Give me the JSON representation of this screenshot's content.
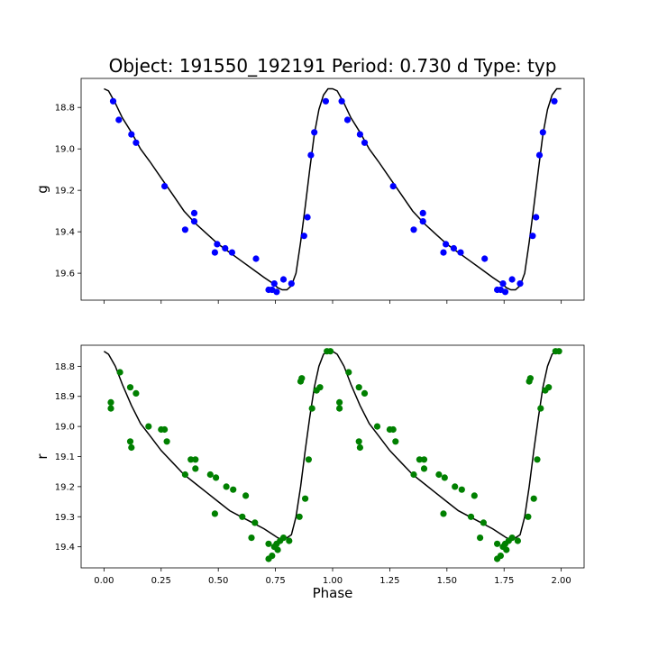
{
  "chart_data": {
    "type": "scatter",
    "title": "Object: 191550_192191    Period: 0.730 d    Type: typ",
    "xlabel": "Phase",
    "x_ticks": [
      0.0,
      0.25,
      0.5,
      0.75,
      1.0,
      1.25,
      1.5,
      1.75,
      2.0
    ],
    "x_tick_labels": [
      "0.00",
      "0.25",
      "0.50",
      "0.75",
      "1.00",
      "1.25",
      "1.50",
      "1.75",
      "2.00"
    ],
    "xlim": [
      -0.1,
      2.1
    ],
    "grid": false,
    "panels": [
      {
        "ylabel": "g",
        "ylim": [
          19.73,
          18.66
        ],
        "y_inverted": true,
        "y_ticks": [
          18.8,
          19.0,
          19.2,
          19.4,
          19.6
        ],
        "y_tick_labels": [
          "18.8",
          "19.0",
          "19.2",
          "19.4",
          "19.6"
        ],
        "point_color": "#0000ff",
        "line_color": "#000000",
        "points": [
          [
            0.04,
            18.77
          ],
          [
            0.065,
            18.86
          ],
          [
            0.12,
            18.93
          ],
          [
            0.14,
            18.97
          ],
          [
            0.265,
            19.18
          ],
          [
            0.355,
            19.39
          ],
          [
            0.395,
            19.31
          ],
          [
            0.395,
            19.35
          ],
          [
            0.485,
            19.5
          ],
          [
            0.495,
            19.46
          ],
          [
            0.53,
            19.48
          ],
          [
            0.56,
            19.5
          ],
          [
            0.665,
            19.53
          ],
          [
            0.72,
            19.68
          ],
          [
            0.735,
            19.68
          ],
          [
            0.745,
            19.65
          ],
          [
            0.755,
            19.69
          ],
          [
            0.785,
            19.63
          ],
          [
            0.82,
            19.65
          ],
          [
            0.875,
            19.42
          ],
          [
            0.89,
            19.33
          ],
          [
            0.905,
            19.03
          ],
          [
            0.92,
            18.92
          ],
          [
            0.97,
            18.77
          ],
          [
            1.04,
            18.77
          ],
          [
            1.065,
            18.86
          ],
          [
            1.12,
            18.93
          ],
          [
            1.14,
            18.97
          ],
          [
            1.265,
            19.18
          ],
          [
            1.355,
            19.39
          ],
          [
            1.395,
            19.31
          ],
          [
            1.395,
            19.35
          ],
          [
            1.485,
            19.5
          ],
          [
            1.495,
            19.46
          ],
          [
            1.53,
            19.48
          ],
          [
            1.56,
            19.5
          ],
          [
            1.665,
            19.53
          ],
          [
            1.72,
            19.68
          ],
          [
            1.735,
            19.68
          ],
          [
            1.745,
            19.65
          ],
          [
            1.755,
            19.69
          ],
          [
            1.785,
            19.63
          ],
          [
            1.82,
            19.65
          ],
          [
            1.875,
            19.42
          ],
          [
            1.89,
            19.33
          ],
          [
            1.905,
            19.03
          ],
          [
            1.92,
            18.92
          ],
          [
            1.97,
            18.77
          ]
        ],
        "model": [
          [
            0.0,
            18.71
          ],
          [
            0.02,
            18.72
          ],
          [
            0.05,
            18.78
          ],
          [
            0.08,
            18.85
          ],
          [
            0.12,
            18.92
          ],
          [
            0.16,
            19.0
          ],
          [
            0.2,
            19.06
          ],
          [
            0.25,
            19.14
          ],
          [
            0.3,
            19.22
          ],
          [
            0.35,
            19.3
          ],
          [
            0.4,
            19.36
          ],
          [
            0.45,
            19.41
          ],
          [
            0.5,
            19.46
          ],
          [
            0.55,
            19.5
          ],
          [
            0.6,
            19.54
          ],
          [
            0.65,
            19.58
          ],
          [
            0.7,
            19.62
          ],
          [
            0.74,
            19.65
          ],
          [
            0.76,
            19.67
          ],
          [
            0.78,
            19.68
          ],
          [
            0.8,
            19.68
          ],
          [
            0.82,
            19.66
          ],
          [
            0.84,
            19.6
          ],
          [
            0.86,
            19.45
          ],
          [
            0.88,
            19.28
          ],
          [
            0.9,
            19.1
          ],
          [
            0.92,
            18.93
          ],
          [
            0.94,
            18.81
          ],
          [
            0.96,
            18.74
          ],
          [
            0.98,
            18.71
          ],
          [
            1.0,
            18.71
          ],
          [
            1.02,
            18.72
          ],
          [
            1.05,
            18.78
          ],
          [
            1.08,
            18.85
          ],
          [
            1.12,
            18.92
          ],
          [
            1.16,
            19.0
          ],
          [
            1.2,
            19.06
          ],
          [
            1.25,
            19.14
          ],
          [
            1.3,
            19.22
          ],
          [
            1.35,
            19.3
          ],
          [
            1.4,
            19.36
          ],
          [
            1.45,
            19.41
          ],
          [
            1.5,
            19.46
          ],
          [
            1.55,
            19.5
          ],
          [
            1.6,
            19.54
          ],
          [
            1.65,
            19.58
          ],
          [
            1.7,
            19.62
          ],
          [
            1.74,
            19.65
          ],
          [
            1.76,
            19.67
          ],
          [
            1.78,
            19.68
          ],
          [
            1.8,
            19.68
          ],
          [
            1.82,
            19.66
          ],
          [
            1.84,
            19.6
          ],
          [
            1.86,
            19.45
          ],
          [
            1.88,
            19.28
          ],
          [
            1.9,
            19.1
          ],
          [
            1.92,
            18.93
          ],
          [
            1.94,
            18.81
          ],
          [
            1.96,
            18.74
          ],
          [
            1.98,
            18.71
          ],
          [
            2.0,
            18.71
          ]
        ]
      },
      {
        "ylabel": "r",
        "ylim": [
          19.47,
          18.73
        ],
        "y_inverted": true,
        "y_ticks": [
          18.8,
          18.9,
          19.0,
          19.1,
          19.2,
          19.3,
          19.4
        ],
        "y_tick_labels": [
          "18.8",
          "18.9",
          "19.0",
          "19.1",
          "19.2",
          "19.3",
          "19.4"
        ],
        "point_color": "#008000",
        "line_color": "#000000",
        "points": [
          [
            0.03,
            18.92
          ],
          [
            0.03,
            18.94
          ],
          [
            0.07,
            18.82
          ],
          [
            0.115,
            18.87
          ],
          [
            0.115,
            19.05
          ],
          [
            0.12,
            19.07
          ],
          [
            0.14,
            18.89
          ],
          [
            0.195,
            19.0
          ],
          [
            0.25,
            19.01
          ],
          [
            0.265,
            19.01
          ],
          [
            0.275,
            19.05
          ],
          [
            0.355,
            19.16
          ],
          [
            0.38,
            19.11
          ],
          [
            0.4,
            19.11
          ],
          [
            0.4,
            19.14
          ],
          [
            0.465,
            19.16
          ],
          [
            0.485,
            19.29
          ],
          [
            0.49,
            19.17
          ],
          [
            0.535,
            19.2
          ],
          [
            0.565,
            19.21
          ],
          [
            0.605,
            19.3
          ],
          [
            0.62,
            19.23
          ],
          [
            0.645,
            19.37
          ],
          [
            0.66,
            19.32
          ],
          [
            0.72,
            19.39
          ],
          [
            0.72,
            19.44
          ],
          [
            0.735,
            19.43
          ],
          [
            0.745,
            19.4
          ],
          [
            0.755,
            19.39
          ],
          [
            0.76,
            19.41
          ],
          [
            0.77,
            19.38
          ],
          [
            0.785,
            19.37
          ],
          [
            0.81,
            19.38
          ],
          [
            0.855,
            19.3
          ],
          [
            0.86,
            18.85
          ],
          [
            0.865,
            18.84
          ],
          [
            0.88,
            19.24
          ],
          [
            0.895,
            19.11
          ],
          [
            0.91,
            18.94
          ],
          [
            0.93,
            18.88
          ],
          [
            0.945,
            18.87
          ],
          [
            0.975,
            18.75
          ],
          [
            0.99,
            18.75
          ],
          [
            1.03,
            18.92
          ],
          [
            1.03,
            18.94
          ],
          [
            1.07,
            18.82
          ],
          [
            1.115,
            18.87
          ],
          [
            1.115,
            19.05
          ],
          [
            1.12,
            19.07
          ],
          [
            1.14,
            18.89
          ],
          [
            1.195,
            19.0
          ],
          [
            1.25,
            19.01
          ],
          [
            1.265,
            19.01
          ],
          [
            1.275,
            19.05
          ],
          [
            1.355,
            19.16
          ],
          [
            1.38,
            19.11
          ],
          [
            1.4,
            19.11
          ],
          [
            1.4,
            19.14
          ],
          [
            1.465,
            19.16
          ],
          [
            1.485,
            19.29
          ],
          [
            1.49,
            19.17
          ],
          [
            1.535,
            19.2
          ],
          [
            1.565,
            19.21
          ],
          [
            1.605,
            19.3
          ],
          [
            1.62,
            19.23
          ],
          [
            1.645,
            19.37
          ],
          [
            1.66,
            19.32
          ],
          [
            1.72,
            19.39
          ],
          [
            1.72,
            19.44
          ],
          [
            1.735,
            19.43
          ],
          [
            1.745,
            19.4
          ],
          [
            1.755,
            19.39
          ],
          [
            1.76,
            19.41
          ],
          [
            1.77,
            19.38
          ],
          [
            1.785,
            19.37
          ],
          [
            1.81,
            19.38
          ],
          [
            1.855,
            19.3
          ],
          [
            1.86,
            18.85
          ],
          [
            1.865,
            18.84
          ],
          [
            1.88,
            19.24
          ],
          [
            1.895,
            19.11
          ],
          [
            1.91,
            18.94
          ],
          [
            1.93,
            18.88
          ],
          [
            1.945,
            18.87
          ],
          [
            1.975,
            18.75
          ],
          [
            1.99,
            18.75
          ]
        ],
        "model": [
          [
            0.0,
            18.75
          ],
          [
            0.02,
            18.76
          ],
          [
            0.05,
            18.8
          ],
          [
            0.08,
            18.86
          ],
          [
            0.12,
            18.93
          ],
          [
            0.16,
            18.99
          ],
          [
            0.2,
            19.03
          ],
          [
            0.25,
            19.08
          ],
          [
            0.3,
            19.12
          ],
          [
            0.35,
            19.16
          ],
          [
            0.4,
            19.19
          ],
          [
            0.45,
            19.22
          ],
          [
            0.5,
            19.25
          ],
          [
            0.55,
            19.28
          ],
          [
            0.6,
            19.3
          ],
          [
            0.65,
            19.32
          ],
          [
            0.7,
            19.34
          ],
          [
            0.74,
            19.36
          ],
          [
            0.76,
            19.37
          ],
          [
            0.78,
            19.375
          ],
          [
            0.8,
            19.37
          ],
          [
            0.82,
            19.36
          ],
          [
            0.84,
            19.3
          ],
          [
            0.86,
            19.2
          ],
          [
            0.88,
            19.08
          ],
          [
            0.9,
            18.97
          ],
          [
            0.92,
            18.87
          ],
          [
            0.94,
            18.8
          ],
          [
            0.96,
            18.76
          ],
          [
            0.98,
            18.75
          ],
          [
            1.0,
            18.75
          ],
          [
            1.02,
            18.76
          ],
          [
            1.05,
            18.8
          ],
          [
            1.08,
            18.86
          ],
          [
            1.12,
            18.93
          ],
          [
            1.16,
            18.99
          ],
          [
            1.2,
            19.03
          ],
          [
            1.25,
            19.08
          ],
          [
            1.3,
            19.12
          ],
          [
            1.35,
            19.16
          ],
          [
            1.4,
            19.19
          ],
          [
            1.45,
            19.22
          ],
          [
            1.5,
            19.25
          ],
          [
            1.55,
            19.28
          ],
          [
            1.6,
            19.3
          ],
          [
            1.65,
            19.32
          ],
          [
            1.7,
            19.34
          ],
          [
            1.74,
            19.36
          ],
          [
            1.76,
            19.37
          ],
          [
            1.78,
            19.375
          ],
          [
            1.8,
            19.37
          ],
          [
            1.82,
            19.36
          ],
          [
            1.84,
            19.3
          ],
          [
            1.86,
            19.2
          ],
          [
            1.88,
            19.08
          ],
          [
            1.9,
            18.97
          ],
          [
            1.92,
            18.87
          ],
          [
            1.94,
            18.8
          ],
          [
            1.96,
            18.76
          ],
          [
            1.98,
            18.75
          ],
          [
            2.0,
            18.75
          ]
        ]
      }
    ]
  }
}
